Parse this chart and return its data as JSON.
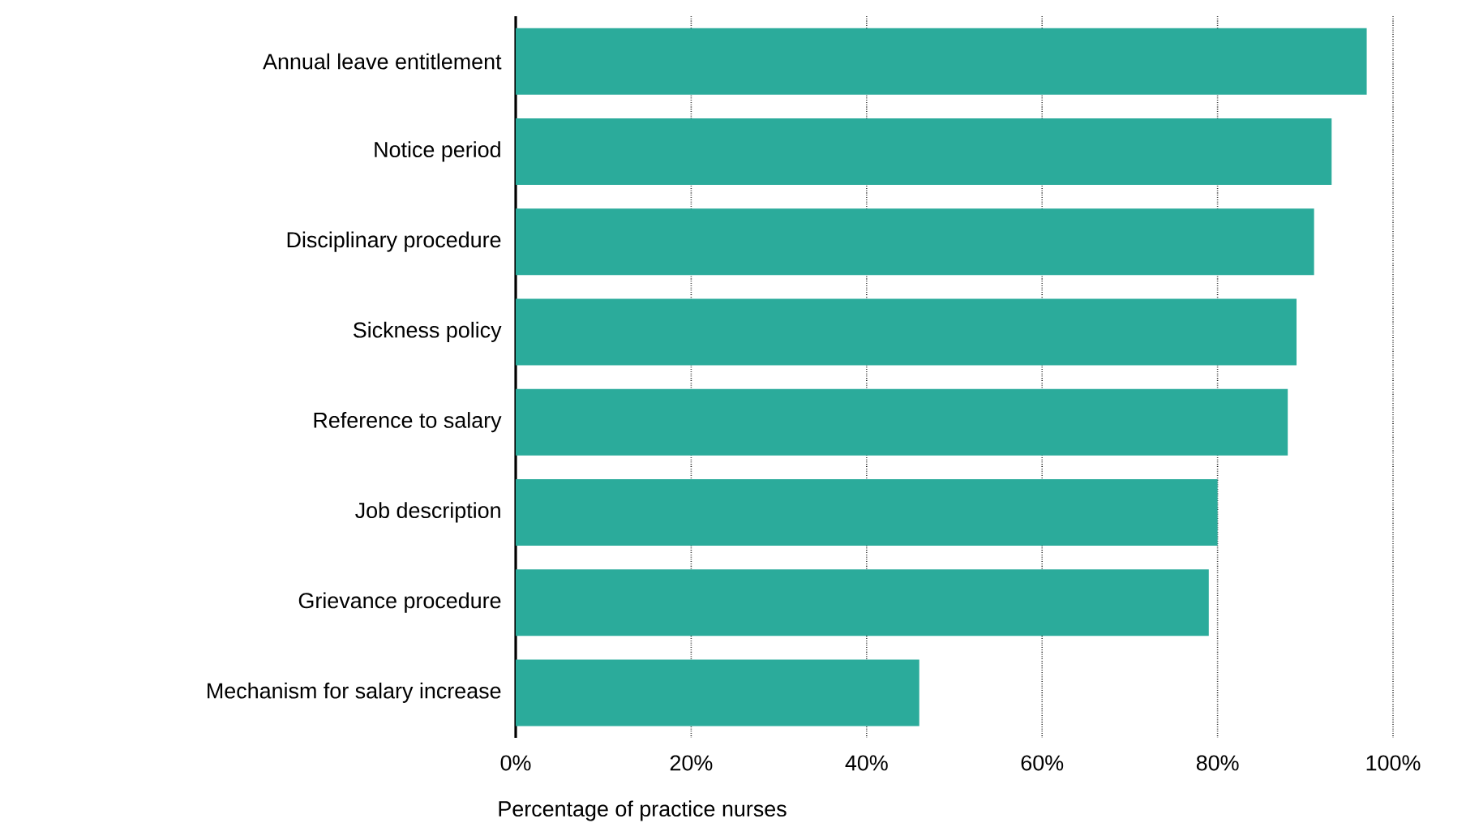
{
  "chart_data": {
    "type": "bar",
    "orientation": "horizontal",
    "xlabel": "Percentage of practice nurses",
    "categories": [
      "Annual leave entitlement",
      "Notice period",
      "Disciplinary procedure",
      "Sickness policy",
      "Reference to salary",
      "Job description",
      "Grievance procedure",
      "Mechanism for salary increase"
    ],
    "values": [
      97,
      93,
      91,
      89,
      88,
      80,
      79,
      46
    ],
    "color": "#2bab9b",
    "xlim": [
      0,
      100
    ],
    "xticks": [
      {
        "value": 0,
        "label": "0%"
      },
      {
        "value": 20,
        "label": "20%"
      },
      {
        "value": 40,
        "label": "40%"
      },
      {
        "value": 60,
        "label": "60%"
      },
      {
        "value": 80,
        "label": "80%"
      },
      {
        "value": 100,
        "label": "100%"
      }
    ],
    "grid": "x"
  }
}
